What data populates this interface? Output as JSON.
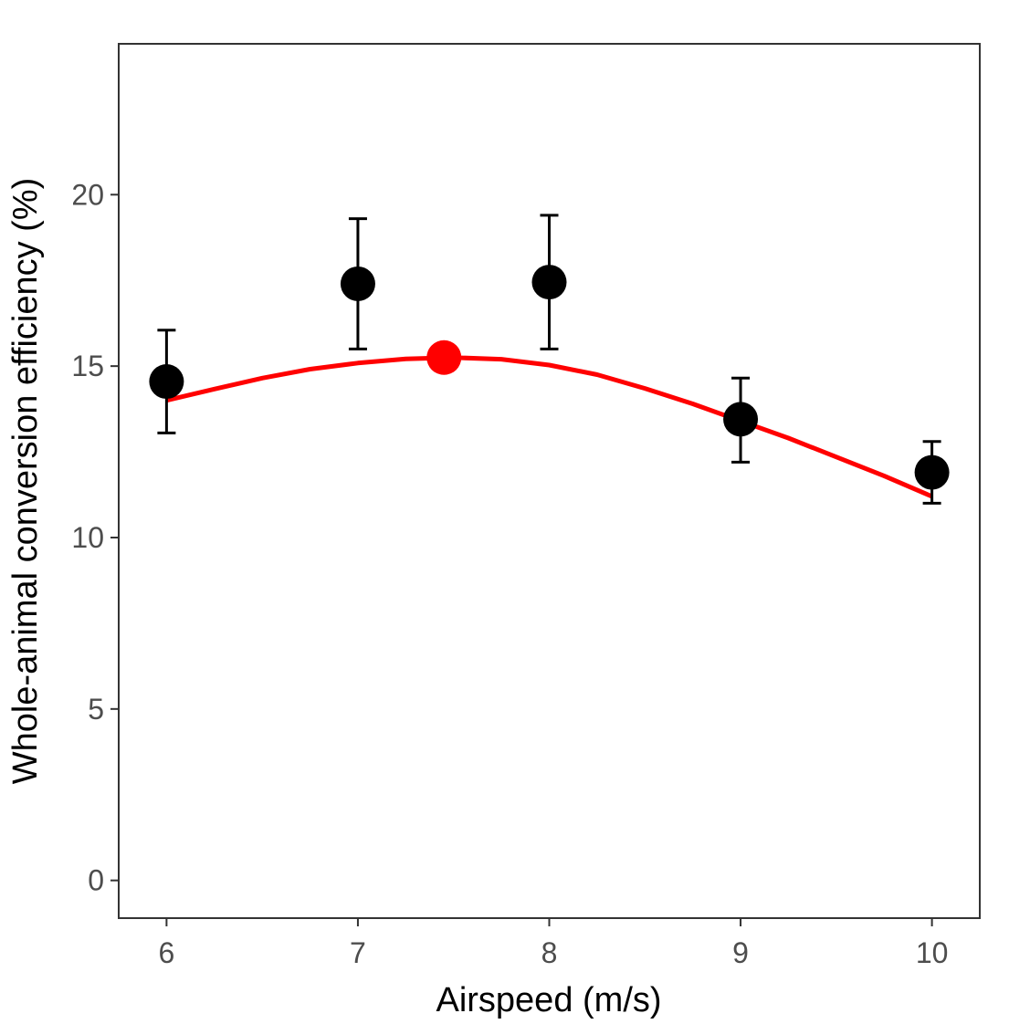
{
  "chart_data": {
    "type": "scatter",
    "xlabel": "Airspeed (m/s)",
    "ylabel": "Whole-animal conversion efficiency (%)",
    "xlim": [
      5.75,
      10.25
    ],
    "ylim": [
      -1.1,
      24.4
    ],
    "x_ticks": [
      "6",
      "7",
      "8",
      "9",
      "10"
    ],
    "y_ticks": [
      "0",
      "5",
      "10",
      "15",
      "20"
    ],
    "grid": false,
    "points": {
      "x": [
        6,
        7,
        8,
        9,
        10
      ],
      "y": [
        14.55,
        17.4,
        17.45,
        13.45,
        11.9
      ],
      "err_low": [
        13.05,
        15.5,
        15.5,
        12.2,
        11.0
      ],
      "err_high": [
        16.05,
        19.3,
        19.4,
        14.65,
        12.8
      ],
      "color": "#000000"
    },
    "fit_curve": {
      "x": [
        6.0,
        6.25,
        6.5,
        6.75,
        7.0,
        7.25,
        7.5,
        7.75,
        8.0,
        8.25,
        8.5,
        8.75,
        9.0,
        9.25,
        9.5,
        9.75,
        10.0
      ],
      "y": [
        14.0,
        14.33,
        14.65,
        14.91,
        15.09,
        15.21,
        15.25,
        15.2,
        15.03,
        14.75,
        14.35,
        13.9,
        13.4,
        12.9,
        12.35,
        11.8,
        11.2
      ],
      "color": "#ff0000"
    },
    "optimum": {
      "x": 7.45,
      "y": 15.25,
      "color": "#ff0000"
    }
  }
}
